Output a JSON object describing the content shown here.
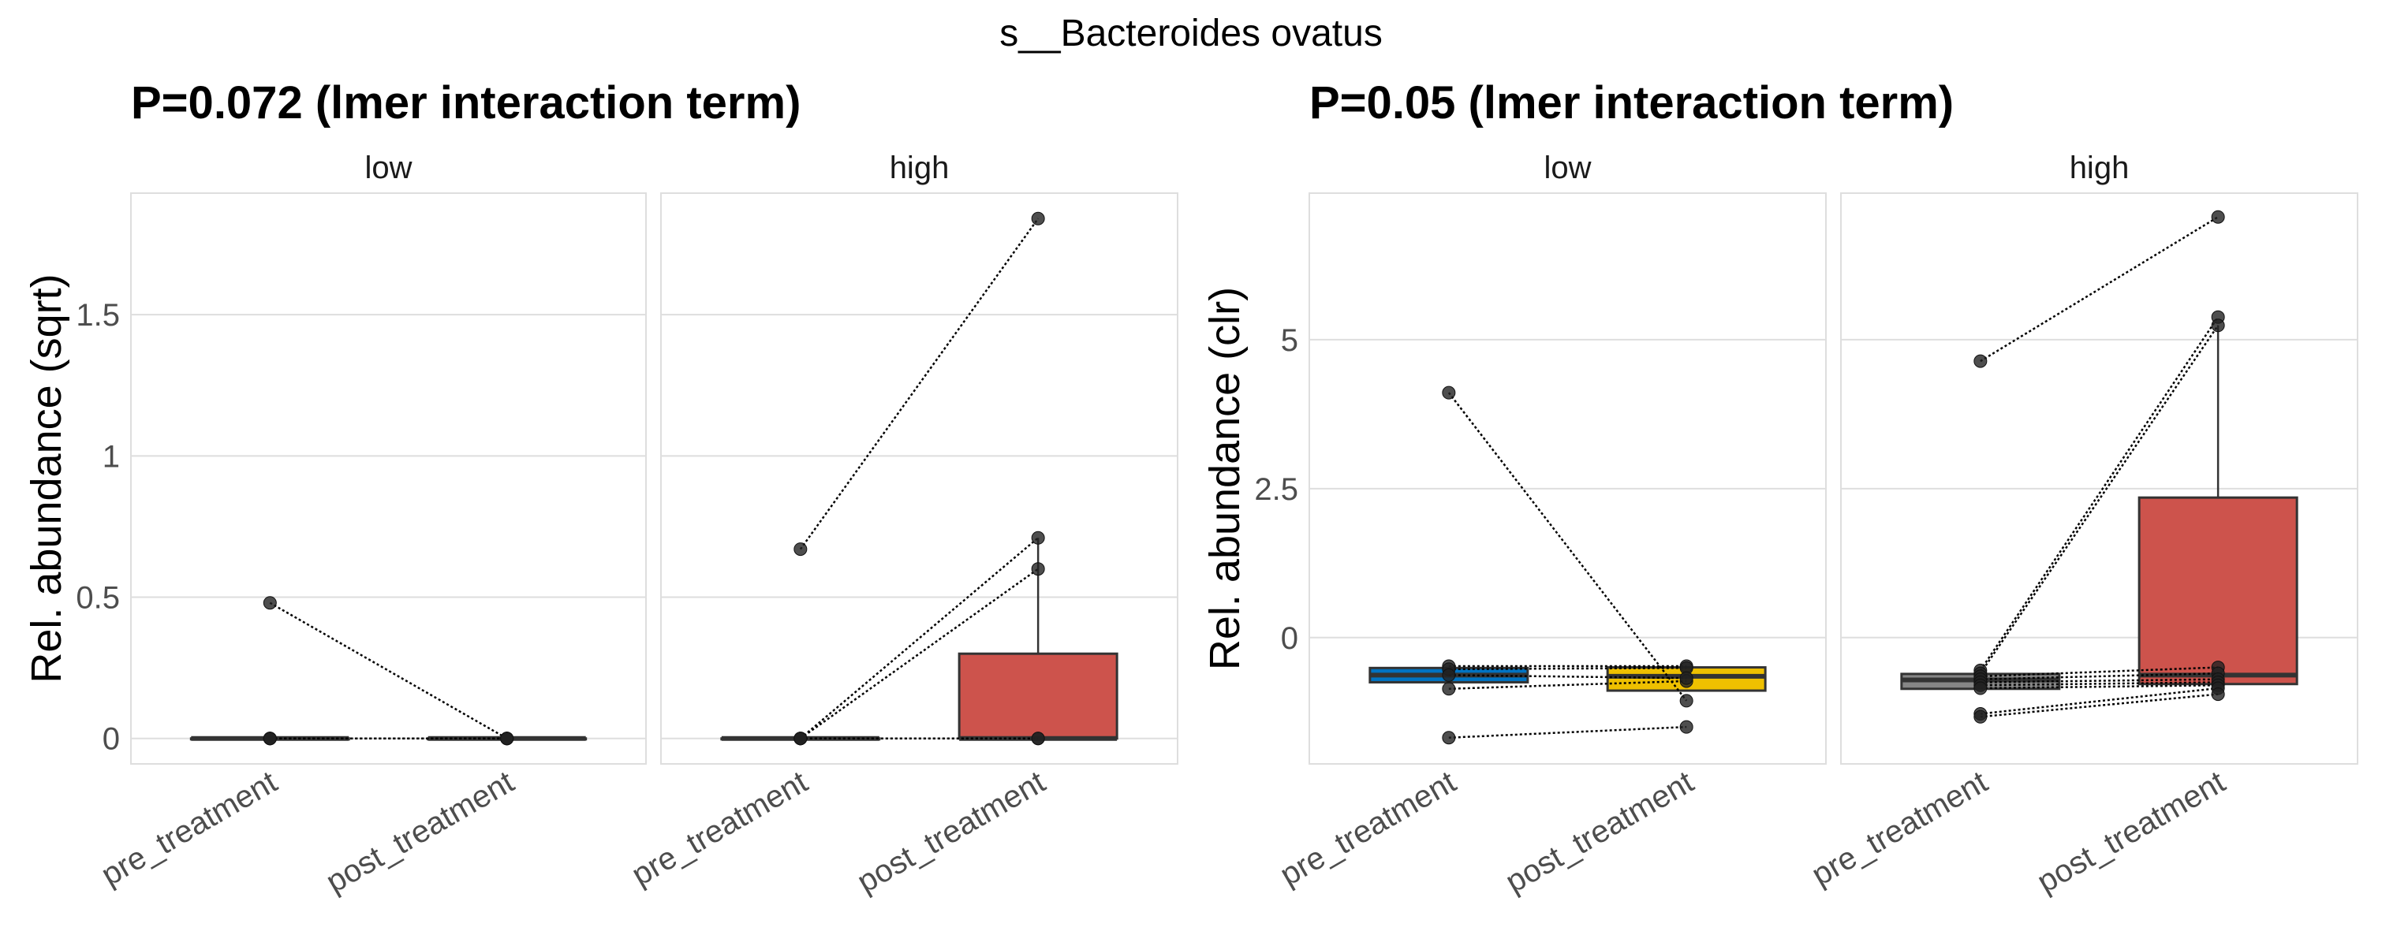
{
  "chart_data": {
    "title": "s__Bacteroides ovatus",
    "plots": [
      {
        "type": "box",
        "subtitle": "P=0.072 (lmer interaction term)",
        "ylabel": "Rel. abundance (sqrt)",
        "ylim": [
          -0.09,
          1.93
        ],
        "yticks": [
          0,
          0.5,
          1,
          1.5
        ],
        "ytick_labels": [
          "0",
          "0.5",
          "1",
          "1.5"
        ],
        "categories": [
          "pre_treatment",
          "post_treatment"
        ],
        "grid": true,
        "facets": [
          {
            "label": "low",
            "boxes": [
              {
                "color": "#0073C2",
                "q1": 0,
                "median": 0,
                "q3": 0,
                "lo": 0,
                "hi": 0
              },
              {
                "color": "#EFC000",
                "q1": 0,
                "median": 0,
                "q3": 0,
                "lo": 0,
                "hi": 0
              }
            ],
            "pairs": [
              [
                0.48,
                0
              ],
              [
                0,
                0
              ],
              [
                0,
                0
              ],
              [
                0,
                0
              ],
              [
                0,
                0
              ]
            ]
          },
          {
            "label": "high",
            "boxes": [
              {
                "color": "#868686",
                "q1": 0,
                "median": 0,
                "q3": 0,
                "lo": 0,
                "hi": 0
              },
              {
                "color": "#CD534C",
                "q1": 0,
                "median": 0,
                "q3": 0.3,
                "lo": 0,
                "hi": 0.71
              }
            ],
            "pairs": [
              [
                0.67,
                1.84
              ],
              [
                0,
                0.71
              ],
              [
                0,
                0.6
              ],
              [
                0,
                0
              ],
              [
                0,
                0
              ]
            ]
          }
        ]
      },
      {
        "type": "box",
        "subtitle": "P=0.05 (lmer interaction term)",
        "ylabel": "Rel. abundance (clr)",
        "ylim": [
          -2.12,
          7.46
        ],
        "yticks": [
          0,
          2.5,
          5
        ],
        "ytick_labels": [
          "0",
          "2.5",
          "5"
        ],
        "categories": [
          "pre_treatment",
          "post_treatment"
        ],
        "grid": true,
        "facets": [
          {
            "label": "low",
            "boxes": [
              {
                "color": "#0073C2",
                "q1": -0.75,
                "median": -0.63,
                "q3": -0.51,
                "lo": -0.75,
                "hi": -0.51
              },
              {
                "color": "#EFC000",
                "q1": -0.89,
                "median": -0.65,
                "q3": -0.5,
                "lo": -0.89,
                "hi": -0.5
              }
            ],
            "pairs": [
              [
                4.11,
                -1.06
              ],
              [
                -1.68,
                -1.5
              ],
              [
                -0.86,
                -0.73
              ],
              [
                -0.48,
                -0.48
              ],
              [
                -0.53,
                -0.51
              ],
              [
                -0.63,
                -0.68
              ]
            ]
          },
          {
            "label": "high",
            "boxes": [
              {
                "color": "#868686",
                "q1": -0.86,
                "median": -0.71,
                "q3": -0.61,
                "lo": -0.86,
                "hi": -0.61
              },
              {
                "color": "#CD534C",
                "q1": -0.78,
                "median": -0.63,
                "q3": 2.35,
                "lo": -0.78,
                "hi": 5.24
              }
            ],
            "pairs": [
              [
                4.64,
                7.06
              ],
              [
                -0.55,
                5.38
              ],
              [
                -0.6,
                5.24
              ],
              [
                -0.65,
                -0.5
              ],
              [
                -0.7,
                -0.6
              ],
              [
                -0.75,
                -0.7
              ],
              [
                -0.8,
                -0.75
              ],
              [
                -0.85,
                -0.8
              ],
              [
                -1.28,
                -0.85
              ],
              [
                -1.33,
                -0.95
              ]
            ]
          }
        ]
      }
    ]
  }
}
